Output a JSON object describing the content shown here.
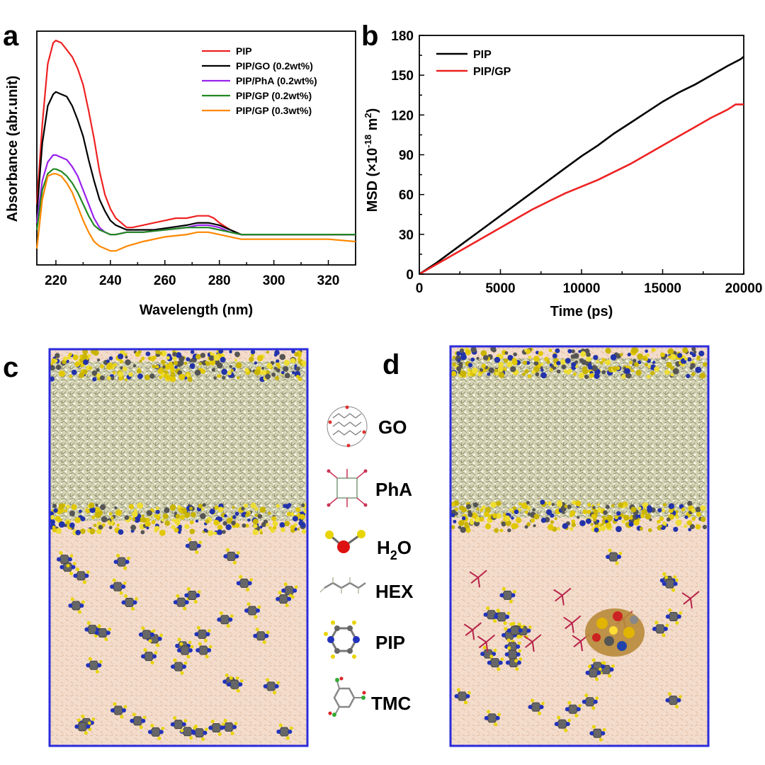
{
  "colors": {
    "red": "#ee2222",
    "black": "#000000",
    "purple": "#9922ee",
    "green": "#228822",
    "orange": "#ff8800",
    "box": "#2b2bdd",
    "liquid": "#f3dccb",
    "membrane": "#d7d5b8"
  },
  "panels": {
    "a": "a",
    "b": "b",
    "c": "c",
    "d": "d"
  },
  "key": {
    "GO": "GO",
    "PhA": "PhA",
    "H2O_main": "H",
    "H2O_sub": "2",
    "H2O_tail": "O",
    "HEX": "HEX",
    "PIP": "PIP",
    "TMC": "TMC"
  },
  "chart_data": [
    {
      "type": "line",
      "xlabel": "Wavelength (nm)",
      "ylabel": "Absorbance (abr.unit)",
      "xlim": [
        213,
        330
      ],
      "xticks": [
        220,
        240,
        260,
        280,
        300,
        320
      ],
      "y_tick_labels_shown": false,
      "ylim": [
        0,
        1
      ],
      "legend_position": "top-right",
      "grid": false,
      "series": [
        {
          "name": "PIP",
          "color": "#ee2222",
          "x": [
            213,
            215,
            217,
            219,
            220,
            222,
            224,
            226,
            228,
            230,
            232,
            234,
            236,
            238,
            240,
            242,
            244,
            246,
            248,
            252,
            256,
            260,
            264,
            268,
            272,
            276,
            278,
            280,
            284,
            288,
            292,
            300,
            310,
            320,
            330
          ],
          "y": [
            0.26,
            0.6,
            0.86,
            0.95,
            0.96,
            0.95,
            0.92,
            0.89,
            0.84,
            0.77,
            0.66,
            0.54,
            0.4,
            0.3,
            0.24,
            0.2,
            0.18,
            0.16,
            0.16,
            0.17,
            0.18,
            0.19,
            0.2,
            0.2,
            0.21,
            0.21,
            0.2,
            0.18,
            0.15,
            0.13,
            0.13,
            0.13,
            0.13,
            0.13,
            0.13
          ]
        },
        {
          "name": "PIP/GO (0.2wt%)",
          "color": "#000000",
          "x": [
            213,
            215,
            217,
            219,
            220,
            222,
            224,
            226,
            228,
            230,
            232,
            234,
            236,
            238,
            240,
            242,
            244,
            246,
            250,
            256,
            262,
            268,
            272,
            276,
            280,
            284,
            288,
            292,
            300,
            310,
            320,
            330
          ],
          "y": [
            0.22,
            0.52,
            0.68,
            0.73,
            0.74,
            0.73,
            0.72,
            0.68,
            0.62,
            0.55,
            0.45,
            0.36,
            0.28,
            0.23,
            0.19,
            0.17,
            0.16,
            0.15,
            0.15,
            0.15,
            0.16,
            0.17,
            0.18,
            0.18,
            0.17,
            0.15,
            0.13,
            0.13,
            0.13,
            0.13,
            0.13,
            0.13
          ]
        },
        {
          "name": "PIP/PhA (0.2wt%)",
          "color": "#9922ee",
          "x": [
            213,
            215,
            217,
            219,
            220,
            222,
            224,
            226,
            228,
            230,
            232,
            234,
            236,
            238,
            240,
            242,
            246,
            252,
            260,
            268,
            272,
            276,
            280,
            284,
            288,
            292,
            300,
            310,
            320,
            330
          ],
          "y": [
            0.18,
            0.36,
            0.44,
            0.47,
            0.47,
            0.46,
            0.45,
            0.42,
            0.38,
            0.32,
            0.26,
            0.2,
            0.16,
            0.14,
            0.13,
            0.13,
            0.14,
            0.14,
            0.15,
            0.16,
            0.17,
            0.17,
            0.16,
            0.14,
            0.13,
            0.13,
            0.13,
            0.13,
            0.13,
            0.13
          ]
        },
        {
          "name": "PIP/GP (0.2wt%)",
          "color": "#228822",
          "x": [
            213,
            215,
            217,
            219,
            220,
            222,
            224,
            226,
            228,
            230,
            232,
            234,
            236,
            238,
            240,
            242,
            246,
            252,
            260,
            268,
            272,
            276,
            280,
            284,
            288,
            292,
            300,
            310,
            320,
            330
          ],
          "y": [
            0.15,
            0.32,
            0.39,
            0.41,
            0.41,
            0.4,
            0.38,
            0.35,
            0.31,
            0.26,
            0.21,
            0.17,
            0.15,
            0.14,
            0.13,
            0.13,
            0.14,
            0.14,
            0.15,
            0.16,
            0.16,
            0.16,
            0.15,
            0.14,
            0.13,
            0.13,
            0.13,
            0.13,
            0.13,
            0.13
          ]
        },
        {
          "name": "PIP/GP (0.3wt%)",
          "color": "#ff8800",
          "x": [
            213,
            215,
            217,
            219,
            220,
            222,
            224,
            226,
            228,
            230,
            232,
            234,
            236,
            238,
            240,
            242,
            246,
            252,
            260,
            268,
            272,
            276,
            280,
            284,
            288,
            292,
            300,
            310,
            320,
            330
          ],
          "y": [
            0.07,
            0.28,
            0.38,
            0.39,
            0.39,
            0.38,
            0.35,
            0.31,
            0.25,
            0.19,
            0.14,
            0.1,
            0.08,
            0.07,
            0.06,
            0.06,
            0.08,
            0.1,
            0.12,
            0.13,
            0.14,
            0.14,
            0.13,
            0.12,
            0.11,
            0.11,
            0.11,
            0.11,
            0.11,
            0.1
          ]
        }
      ]
    },
    {
      "type": "line",
      "xlabel": "Time (ps)",
      "ylabel_main": "MSD (×10",
      "ylabel_sup1": "-18",
      "ylabel_mid": " m",
      "ylabel_sup2": "2",
      "ylabel_tail": ")",
      "xlim": [
        0,
        20000
      ],
      "ylim": [
        0,
        180
      ],
      "xticks": [
        0,
        5000,
        10000,
        15000,
        20000
      ],
      "yticks": [
        0,
        30,
        60,
        90,
        120,
        150,
        180
      ],
      "legend_position": "top-left",
      "grid": false,
      "series": [
        {
          "name": "PIP",
          "color": "#000000",
          "x": [
            0,
            1000,
            2000,
            3000,
            4000,
            5000,
            6000,
            7000,
            8000,
            9000,
            10000,
            11000,
            12000,
            13000,
            14000,
            15000,
            16000,
            17000,
            18000,
            19000,
            19800,
            20000
          ],
          "y": [
            0,
            8,
            17,
            26,
            35,
            44,
            53,
            62,
            71,
            80,
            89,
            97,
            106,
            114,
            122,
            130,
            137,
            143,
            150,
            157,
            162,
            164
          ]
        },
        {
          "name": "PIP/GP",
          "color": "#ee2222",
          "x": [
            0,
            1000,
            2000,
            3000,
            4000,
            5000,
            6000,
            7000,
            8000,
            9000,
            10000,
            11000,
            12000,
            13000,
            14000,
            15000,
            16000,
            17000,
            18000,
            19000,
            19500,
            20000
          ],
          "y": [
            0,
            7,
            14,
            21,
            28,
            35,
            42,
            49,
            55,
            61,
            66,
            71,
            77,
            83,
            90,
            97,
            104,
            111,
            118,
            124,
            128,
            128
          ]
        }
      ]
    }
  ]
}
